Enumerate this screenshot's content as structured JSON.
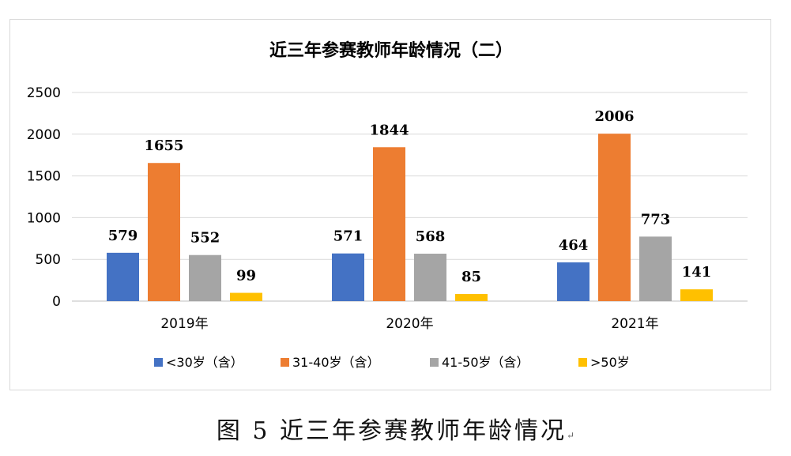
{
  "chart_data": {
    "type": "bar",
    "title": "近三年参赛教师年龄情况（二）",
    "categories": [
      "2019年",
      "2020年",
      "2021年"
    ],
    "series": [
      {
        "name": "<30岁（含）",
        "values": [
          579,
          571,
          464
        ],
        "color": "#4472C4"
      },
      {
        "name": "31-40岁（含）",
        "values": [
          1655,
          1844,
          2006
        ],
        "color": "#ED7D31"
      },
      {
        "name": "41-50岁（含）",
        "values": [
          552,
          568,
          773
        ],
        "color": "#A5A5A5"
      },
      {
        "name": ">50岁",
        "values": [
          99,
          85,
          141
        ],
        "color": "#FFC000"
      }
    ],
    "ylim": [
      0,
      2500
    ],
    "yticks": [
      0,
      500,
      1000,
      1500,
      2000,
      2500
    ],
    "grid": true,
    "legend": "bottom",
    "data_labels": true
  },
  "caption": {
    "text": "图 5  近三年参赛教师年龄情况",
    "mark": "↵"
  }
}
